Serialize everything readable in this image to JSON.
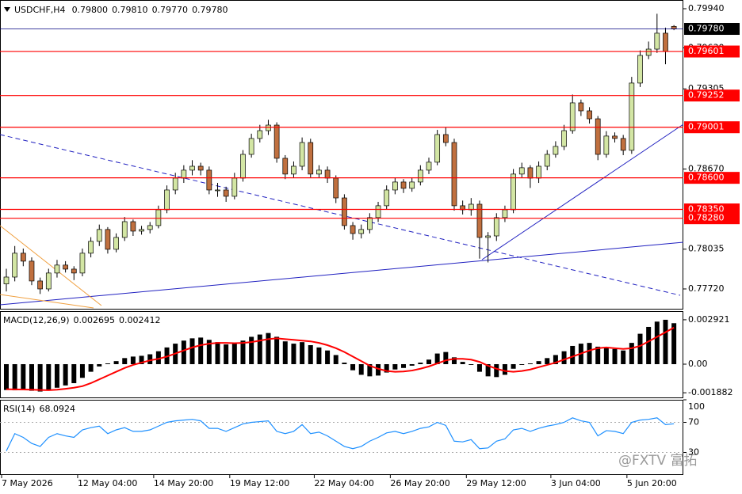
{
  "chart_data": [
    {
      "type": "candlestick",
      "title": "USDCHF,H4",
      "value_labels": [
        "0.79800",
        "0.79810",
        "0.79770",
        "0.79780"
      ],
      "categories": [
        "7 May 2026",
        null,
        null,
        null,
        null,
        null,
        null,
        null,
        null,
        "12 May 04:00",
        null,
        null,
        null,
        null,
        null,
        null,
        null,
        null,
        "14 May 20:00",
        null,
        null,
        null,
        null,
        null,
        null,
        null,
        null,
        "19 May 12:00",
        null,
        null,
        null,
        null,
        null,
        null,
        null,
        null,
        null,
        "22 May 04:00",
        null,
        null,
        null,
        null,
        null,
        null,
        null,
        null,
        "26 May 20:00",
        null,
        null,
        null,
        null,
        null,
        null,
        null,
        null,
        "29 May 12:00",
        null,
        null,
        null,
        null,
        null,
        null,
        null,
        null,
        null,
        "3 Jun 04:00",
        null,
        null,
        null,
        null,
        null,
        null,
        null,
        null,
        "5 Jun 20:00",
        null,
        null,
        null,
        null,
        null
      ],
      "candles": [
        [
          0.7776,
          0.7788,
          0.777,
          0.77814
        ],
        [
          0.77814,
          0.7806,
          0.7778,
          0.78003
        ],
        [
          0.78003,
          0.7804,
          0.779,
          0.7794
        ],
        [
          0.7794,
          0.7797,
          0.7775,
          0.77783
        ],
        [
          0.77783,
          0.7781,
          0.7768,
          0.7772
        ],
        [
          0.7772,
          0.7788,
          0.777,
          0.77846
        ],
        [
          0.77846,
          0.7795,
          0.7781,
          0.77909
        ],
        [
          0.77909,
          0.7794,
          0.7785,
          0.77877
        ],
        [
          0.77877,
          0.779,
          0.7779,
          0.77846
        ],
        [
          0.77846,
          0.7804,
          0.7782,
          0.78003
        ],
        [
          0.78003,
          0.7813,
          0.7797,
          0.78097
        ],
        [
          0.78097,
          0.7823,
          0.7806,
          0.78191
        ],
        [
          0.78191,
          0.7821,
          0.78,
          0.78034
        ],
        [
          0.78034,
          0.7816,
          0.7801,
          0.78128
        ],
        [
          0.78128,
          0.7829,
          0.781,
          0.78253
        ],
        [
          0.78253,
          0.7827,
          0.7814,
          0.78178
        ],
        [
          0.78178,
          0.7822,
          0.7815,
          0.78191
        ],
        [
          0.78191,
          0.7825,
          0.7816,
          0.78222
        ],
        [
          0.78222,
          0.7838,
          0.782,
          0.78347
        ],
        [
          0.78347,
          0.7854,
          0.7832,
          0.78504
        ],
        [
          0.78504,
          0.7864,
          0.7847,
          0.78598
        ],
        [
          0.78598,
          0.787,
          0.7856,
          0.78661
        ],
        [
          0.78661,
          0.7874,
          0.7862,
          0.78692
        ],
        [
          0.78692,
          0.7872,
          0.7862,
          0.78661
        ],
        [
          0.78661,
          0.7869,
          0.7847,
          0.78504
        ],
        [
          0.78504,
          0.7856,
          0.7845,
          0.78504
        ],
        [
          0.78504,
          0.7853,
          0.7841,
          0.78454
        ],
        [
          0.78454,
          0.7864,
          0.7843,
          0.78598
        ],
        [
          0.78598,
          0.7882,
          0.7857,
          0.78786
        ],
        [
          0.78786,
          0.7895,
          0.7876,
          0.78912
        ],
        [
          0.78912,
          0.7902,
          0.7888,
          0.78974
        ],
        [
          0.78974,
          0.7906,
          0.7894,
          0.79018
        ],
        [
          0.79018,
          0.7904,
          0.7872,
          0.78755
        ],
        [
          0.78755,
          0.7878,
          0.7859,
          0.7863
        ],
        [
          0.7863,
          0.7873,
          0.786,
          0.78692
        ],
        [
          0.78692,
          0.7892,
          0.7866,
          0.7888
        ],
        [
          0.7888,
          0.7891,
          0.786,
          0.7863
        ],
        [
          0.7863,
          0.787,
          0.786,
          0.78661
        ],
        [
          0.78661,
          0.7869,
          0.7856,
          0.78598
        ],
        [
          0.78598,
          0.7862,
          0.784,
          0.78441
        ],
        [
          0.78441,
          0.7847,
          0.7819,
          0.78222
        ],
        [
          0.78222,
          0.7825,
          0.7811,
          0.78159
        ],
        [
          0.78159,
          0.7823,
          0.7812,
          0.78191
        ],
        [
          0.78191,
          0.7832,
          0.7816,
          0.78285
        ],
        [
          0.78285,
          0.7841,
          0.7825,
          0.78379
        ],
        [
          0.78379,
          0.7854,
          0.7835,
          0.78504
        ],
        [
          0.78504,
          0.786,
          0.7847,
          0.78567
        ],
        [
          0.78567,
          0.7859,
          0.7848,
          0.78517
        ],
        [
          0.78517,
          0.786,
          0.7849,
          0.78567
        ],
        [
          0.78567,
          0.787,
          0.7854,
          0.78661
        ],
        [
          0.78661,
          0.7876,
          0.7863,
          0.78724
        ],
        [
          0.78724,
          0.7898,
          0.787,
          0.78943
        ],
        [
          0.78943,
          0.79,
          0.7885,
          0.7888
        ],
        [
          0.7888,
          0.7891,
          0.7834,
          0.78379
        ],
        [
          0.78379,
          0.7842,
          0.7831,
          0.78347
        ],
        [
          0.78347,
          0.7844,
          0.783,
          0.78391
        ],
        [
          0.78391,
          0.7842,
          0.7796,
          0.78128
        ],
        [
          0.78128,
          0.7817,
          0.7793,
          0.7814
        ],
        [
          0.7814,
          0.7832,
          0.781,
          0.78285
        ],
        [
          0.78285,
          0.7838,
          0.7825,
          0.78347
        ],
        [
          0.78347,
          0.7867,
          0.7832,
          0.7863
        ],
        [
          0.7863,
          0.7872,
          0.786,
          0.7868
        ],
        [
          0.7868,
          0.787,
          0.7852,
          0.78598
        ],
        [
          0.78598,
          0.7873,
          0.7856,
          0.78692
        ],
        [
          0.78692,
          0.7882,
          0.7866,
          0.78786
        ],
        [
          0.78786,
          0.7889,
          0.7876,
          0.78849
        ],
        [
          0.78849,
          0.7902,
          0.7882,
          0.78974
        ],
        [
          0.78974,
          0.7926,
          0.7895,
          0.79194
        ],
        [
          0.79194,
          0.7922,
          0.7909,
          0.79131
        ],
        [
          0.79131,
          0.7916,
          0.7903,
          0.79068
        ],
        [
          0.79068,
          0.7909,
          0.7874,
          0.78786
        ],
        [
          0.78786,
          0.7897,
          0.7876,
          0.78931
        ],
        [
          0.78931,
          0.7896,
          0.7888,
          0.78912
        ],
        [
          0.78912,
          0.7894,
          0.7878,
          0.78818
        ],
        [
          0.78818,
          0.794,
          0.7879,
          0.79351
        ],
        [
          0.79351,
          0.7961,
          0.7932,
          0.7957
        ],
        [
          0.7957,
          0.7968,
          0.7954,
          0.7962
        ],
        [
          0.7962,
          0.799,
          0.7959,
          0.79746
        ],
        [
          0.79746,
          0.7979,
          0.795,
          0.79601
        ],
        [
          0.798,
          0.7981,
          0.7977,
          0.7978
        ]
      ],
      "colors": {
        "up": "#d3e6a4",
        "down": "#c0703f",
        "wick": "#000000"
      },
      "ylim": [
        0.77563,
        0.80009
      ],
      "yticks": [
        {
          "value": 0.7994,
          "label": "0.79940"
        },
        {
          "value": 0.7963,
          "label": "0.79630"
        },
        {
          "value": 0.79305,
          "label": "0.79305"
        },
        {
          "value": 0.7867,
          "label": "0.78670"
        },
        {
          "value": 0.78035,
          "label": "0.78035"
        },
        {
          "value": 0.7772,
          "label": "0.77720"
        }
      ],
      "levels": [
        {
          "value": 0.79601,
          "label": "0.79601"
        },
        {
          "value": 0.79252,
          "label": "0.79252"
        },
        {
          "value": 0.79001,
          "label": "0.79001"
        },
        {
          "value": 0.786,
          "label": "0.78600"
        },
        {
          "value": 0.7835,
          "label": "0.78350"
        },
        {
          "value": 0.7828,
          "label": "0.78280"
        }
      ],
      "level_color": "#ff0000",
      "current_price": {
        "value": 0.7978,
        "label": "0.79780",
        "color": "#000080"
      },
      "watermark": "@FXTV 富拓"
    },
    {
      "type": "macd",
      "title": "MACD(12,26,9)",
      "series": [
        {
          "color": "#000000",
          "values": [
            -0.0017,
            -0.00172,
            -0.0017,
            -0.00175,
            -0.0018,
            -0.0017,
            -0.00155,
            -0.0014,
            -0.00125,
            -0.0009,
            -0.0005,
            -0.00015,
            5e-05,
            0.0002,
            0.0004,
            0.0005,
            0.00055,
            0.00065,
            0.00085,
            0.0011,
            0.00135,
            0.00155,
            0.0017,
            0.00175,
            0.0016,
            0.00145,
            0.0013,
            0.00135,
            0.00155,
            0.0018,
            0.00195,
            0.00205,
            0.0018,
            0.0015,
            0.00135,
            0.00145,
            0.00125,
            0.0011,
            0.0009,
            0.0006,
            0.0001,
            -0.0004,
            -0.0007,
            -0.0008,
            -0.00075,
            -0.00055,
            -0.00035,
            -0.00025,
            -0.0001,
            0.0001,
            0.0003,
            0.0007,
            0.0008,
            0.00045,
            0.00015,
            -5e-05,
            -0.0005,
            -0.0008,
            -0.00085,
            -0.0007,
            -0.0003,
            -5e-05,
            5e-05,
            0.0002,
            0.0004,
            0.0006,
            0.00085,
            0.0012,
            0.00135,
            0.0014,
            0.00115,
            0.0011,
            0.001,
            0.0009,
            0.0014,
            0.002,
            0.00245,
            0.0028,
            0.002921,
            0.002695
          ]
        },
        {
          "color": "#ff0000",
          "values": [
            -0.00165,
            -0.00166,
            -0.00167,
            -0.00168,
            -0.0017,
            -0.00171,
            -0.00168,
            -0.00162,
            -0.00155,
            -0.00145,
            -0.00125,
            -0.001,
            -0.00075,
            -0.0005,
            -0.00025,
            -5e-05,
            0.0001,
            0.00025,
            0.00035,
            0.0005,
            0.0007,
            0.0009,
            0.0011,
            0.00125,
            0.00135,
            0.0014,
            0.0014,
            0.00138,
            0.0014,
            0.00145,
            0.00155,
            0.00165,
            0.0017,
            0.00165,
            0.0016,
            0.00155,
            0.0015,
            0.0014,
            0.00125,
            0.00105,
            0.0008,
            0.0005,
            0.0002,
            -0.0001,
            -0.0003,
            -0.00045,
            -0.0005,
            -0.00048,
            -0.00042,
            -0.0003,
            -0.00015,
            5e-05,
            0.00025,
            0.00035,
            0.00035,
            0.0003,
            0.00015,
            -0.0001,
            -0.0003,
            -0.00045,
            -0.0005,
            -0.00045,
            -0.00035,
            -0.0002,
            -5e-05,
            0.0001,
            0.0003,
            0.0005,
            0.0007,
            0.0009,
            0.00105,
            0.0011,
            0.00105,
            0.001,
            0.00105,
            0.0012,
            0.0015,
            0.0018,
            0.0021,
            0.002412
          ]
        }
      ],
      "ylim": [
        -0.00224,
        0.00349
      ],
      "yticks": [
        0.002921,
        {
          "value": 0,
          "label": "0.00"
        },
        -0.001882
      ]
    },
    {
      "type": "rsi",
      "title": "RSI(14)",
      "color": "#1e90ff",
      "values": [
        32,
        55,
        50,
        42,
        38,
        50,
        55,
        52,
        50,
        60,
        63,
        65,
        55,
        60,
        63,
        58,
        58,
        60,
        65,
        70,
        72,
        73,
        74,
        72,
        62,
        62,
        58,
        63,
        68,
        70,
        71,
        72,
        58,
        55,
        58,
        67,
        55,
        57,
        52,
        45,
        38,
        35,
        38,
        45,
        50,
        56,
        58,
        55,
        58,
        62,
        64,
        70,
        66,
        45,
        44,
        47,
        35,
        36,
        45,
        48,
        60,
        62,
        58,
        62,
        65,
        67,
        70,
        76,
        72,
        70,
        52,
        59,
        58,
        55,
        70,
        73,
        74,
        76,
        67,
        68.0924
      ],
      "levels": [
        70,
        30
      ],
      "ylim": [
        0,
        100
      ],
      "yticks": [
        100,
        70,
        30
      ]
    }
  ]
}
